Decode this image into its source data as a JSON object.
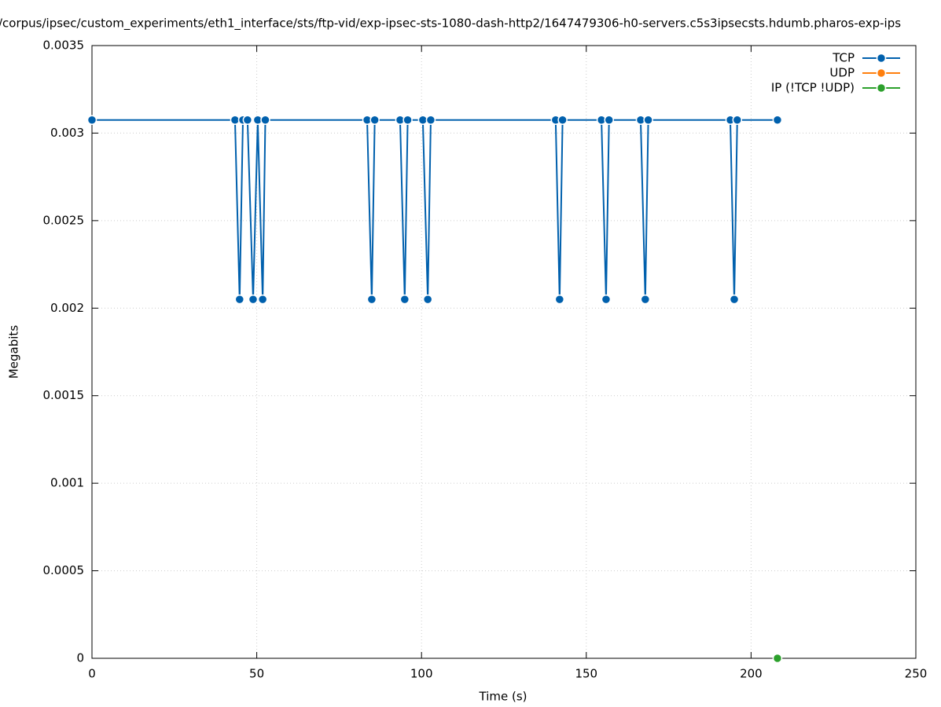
{
  "chart_data": {
    "type": "line",
    "title": "/corpus/ipsec/custom_experiments/eth1_interface/sts/ftp-vid/exp-ipsec-sts-1080-dash-http2/1647479306-h0-servers.c5s3ipsecsts.hdumb.pharos-exp-ips",
    "xlabel": "Time (s)",
    "ylabel": "Megabits",
    "xlim": [
      0,
      250
    ],
    "xticks": [
      0,
      50,
      100,
      150,
      200,
      250
    ],
    "ylim": [
      0,
      0.0035
    ],
    "yticks": [
      0,
      0.0005,
      0.001,
      0.0015,
      0.002,
      0.0025,
      0.003,
      0.0035
    ],
    "grid": true,
    "legend": "top-right",
    "series": [
      {
        "name": "TCP",
        "color": "#0060ad",
        "x": [
          0,
          43.4,
          44.8,
          45.8,
          47.2,
          48.9,
          50.3,
          51.8,
          52.6,
          83.5,
          84.9,
          85.8,
          93.5,
          94.9,
          95.8,
          100.4,
          101.9,
          102.8,
          140.7,
          141.9,
          142.8,
          154.6,
          156.0,
          156.9,
          166.5,
          167.9,
          168.8,
          193.7,
          194.9,
          195.8,
          208.0
        ],
        "values": [
          0.003075,
          0.003075,
          0.00205,
          0.003075,
          0.003075,
          0.00205,
          0.003075,
          0.00205,
          0.003075,
          0.003075,
          0.00205,
          0.003075,
          0.003075,
          0.00205,
          0.003075,
          0.003075,
          0.00205,
          0.003075,
          0.003075,
          0.00205,
          0.003075,
          0.003075,
          0.00205,
          0.003075,
          0.003075,
          0.00205,
          0.003075,
          0.003075,
          0.00205,
          0.003075,
          0.003075
        ]
      },
      {
        "name": "UDP",
        "color": "#ff7f0e",
        "x": [],
        "values": []
      },
      {
        "name": "IP (!TCP  !UDP)",
        "color": "#2ca02c",
        "x": [
          208.0
        ],
        "values": [
          0
        ]
      }
    ]
  }
}
